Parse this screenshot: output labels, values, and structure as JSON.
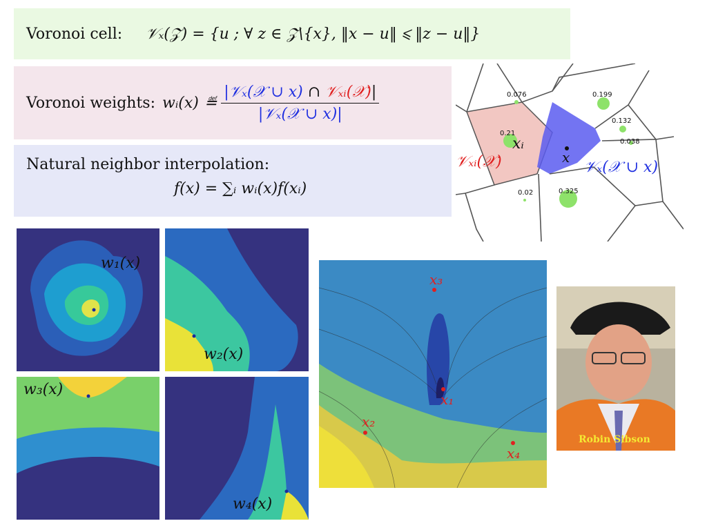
{
  "cell": {
    "label": "Voronoi cell:",
    "formula": "𝒱ₓ(𝒵) = {u ; ∀ z ∈ 𝒵\\{x}, ‖x − u‖ ⩽ ‖z − u‖}"
  },
  "weights": {
    "label": "Voronoi weights:",
    "lhs": "wᵢ(x)",
    "defeq": "≝",
    "num_blue1": "|𝒱ₓ(𝒳 ∪ x)",
    "num_cap": " ∩ ",
    "num_red": "𝒱ₓᵢ(𝒳)",
    "num_end": "|",
    "den": "|𝒱ₓ(𝒳 ∪ x)|"
  },
  "nn": {
    "label": "Natural neighbor interpolation:",
    "formula": "f(x) = ∑ᵢ wᵢ(x)f(xᵢ)"
  },
  "voronoi": {
    "weights_values": [
      "0.076",
      "0.199",
      "0.21",
      "0.132",
      "0.038",
      "0.02",
      "0.325"
    ],
    "label_xi": "xᵢ",
    "label_x": "x",
    "label_red": "𝒱ₓᵢ(𝒳)",
    "label_blue": "𝒱ₓ(𝒳 ∪ x)",
    "colors": {
      "red_cell": "#f2c7c2",
      "blue_cell": "#5a5cf0",
      "dots": "#8ee26a"
    }
  },
  "panels": {
    "w1": "w₁(x)",
    "w2": "w₂(x)",
    "w3": "w₃(x)",
    "w4": "w₄(x)"
  },
  "big_panel": {
    "x1": "x₁",
    "x2": "x₂",
    "x3": "x₃",
    "x4": "x₄"
  },
  "photo": {
    "caption": "Robin Sibson"
  }
}
